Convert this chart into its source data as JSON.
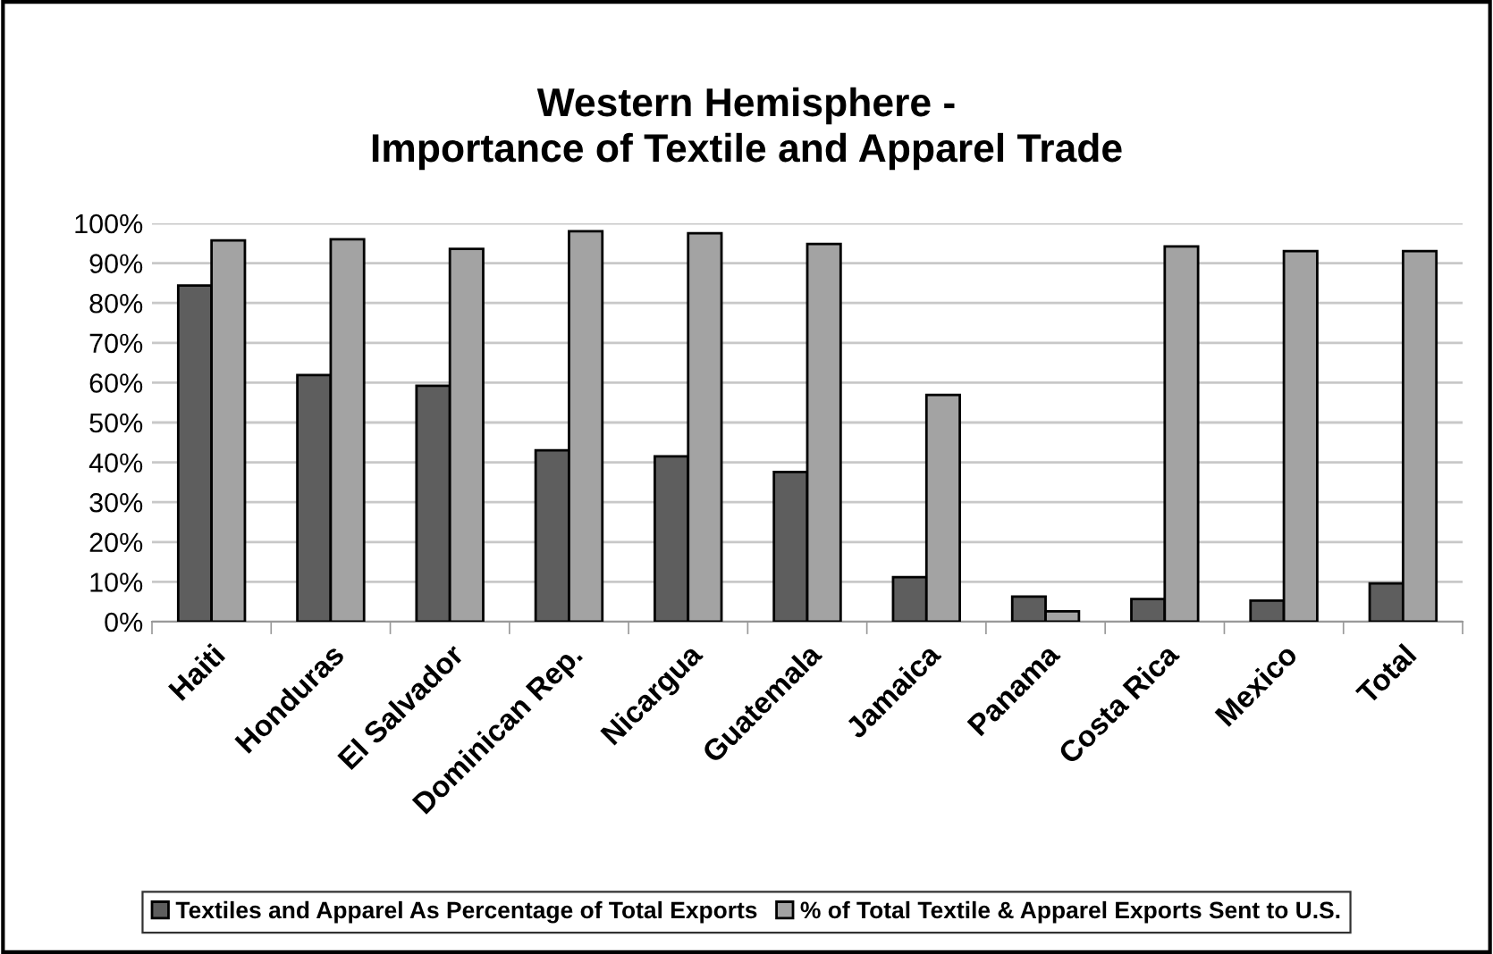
{
  "chart_data": {
    "type": "bar",
    "title": "Western Hemisphere -\nImportance of Textile and Apparel Trade",
    "categories": [
      "Haiti",
      "Honduras",
      "El Salvador",
      "Dominican Rep.",
      "Nicargua",
      "Guatemala",
      "Jamaica",
      "Panama",
      "Costa Rica",
      "Mexico",
      "Total"
    ],
    "series": [
      {
        "name": "Textiles and Apparel As Percentage of Total Exports",
        "color": "#5e5e5e",
        "values": [
          84.4,
          61.9,
          59.2,
          43.0,
          41.5,
          37.6,
          11.2,
          6.3,
          5.7,
          5.3,
          9.6
        ]
      },
      {
        "name": "% of Total Textile & Apparel Exports Sent to U.S.",
        "color": "#a3a3a3",
        "values": [
          95.7,
          96.0,
          93.6,
          98.0,
          97.5,
          94.8,
          56.9,
          2.6,
          94.2,
          93.0,
          93.0
        ]
      }
    ],
    "ylim": [
      0,
      100
    ],
    "yticks": [
      {
        "value": 0,
        "label": "0%"
      },
      {
        "value": 10,
        "label": "10%"
      },
      {
        "value": 20,
        "label": "20%"
      },
      {
        "value": 30,
        "label": "30%"
      },
      {
        "value": 40,
        "label": "40%"
      },
      {
        "value": 50,
        "label": "50%"
      },
      {
        "value": 60,
        "label": "60%"
      },
      {
        "value": 70,
        "label": "70%"
      },
      {
        "value": 80,
        "label": "80%"
      },
      {
        "value": 90,
        "label": "90%"
      },
      {
        "value": 100,
        "label": "100%"
      }
    ],
    "grid": "y",
    "legend": "bottom"
  }
}
